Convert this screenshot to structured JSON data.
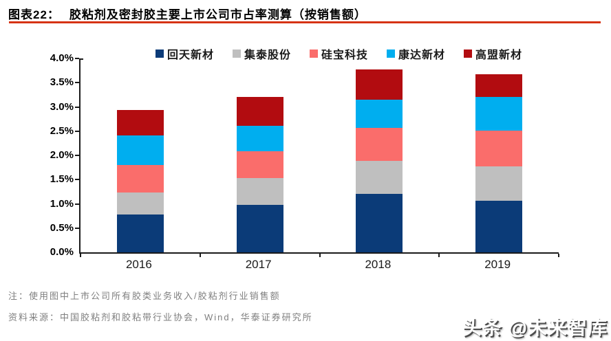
{
  "header": {
    "figure_label": "图表22：",
    "title": "胶粘剂及密封胶主要上市公司市占率测算（按销售额）"
  },
  "chart_data": {
    "type": "bar",
    "stacked": true,
    "categories": [
      "2016",
      "2017",
      "2018",
      "2019"
    ],
    "series": [
      {
        "name": "回天新材",
        "color": "#0b3b78",
        "values": [
          0.78,
          0.98,
          1.21,
          1.07
        ]
      },
      {
        "name": "集泰股份",
        "color": "#bfbfbf",
        "values": [
          0.46,
          0.55,
          0.68,
          0.71
        ]
      },
      {
        "name": "硅宝科技",
        "color": "#fa6d6b",
        "values": [
          0.56,
          0.55,
          0.68,
          0.73
        ]
      },
      {
        "name": "康达新材",
        "color": "#00aeef",
        "values": [
          0.61,
          0.53,
          0.58,
          0.7
        ]
      },
      {
        "name": "高盟新材",
        "color": "#b20c10",
        "values": [
          0.53,
          0.59,
          0.62,
          0.47
        ]
      }
    ],
    "totals": [
      2.94,
      3.2,
      3.77,
      3.68
    ],
    "title": "胶粘剂及密封胶主要上市公司市占率测算（按销售额）",
    "xlabel": "",
    "ylabel": "",
    "ylim": [
      0,
      4
    ],
    "ytick_labels": [
      "0.0%",
      "0.5%",
      "1.0%",
      "1.5%",
      "2.0%",
      "2.5%",
      "3.0%",
      "3.5%",
      "4.0%"
    ],
    "grid": false,
    "legend_position": "top"
  },
  "footer": {
    "note": "注：使用图中上市公司所有胶类业务收入/胶粘剂行业销售额",
    "source": "资料来源：中国胶粘剂和胶粘带行业协会，Wind，华泰证券研究所"
  },
  "watermark": "头条 @未来智库",
  "colors": {
    "title_underline": "#d63314",
    "axis": "#1a1a1a",
    "note_text": "#7f7f7f"
  }
}
